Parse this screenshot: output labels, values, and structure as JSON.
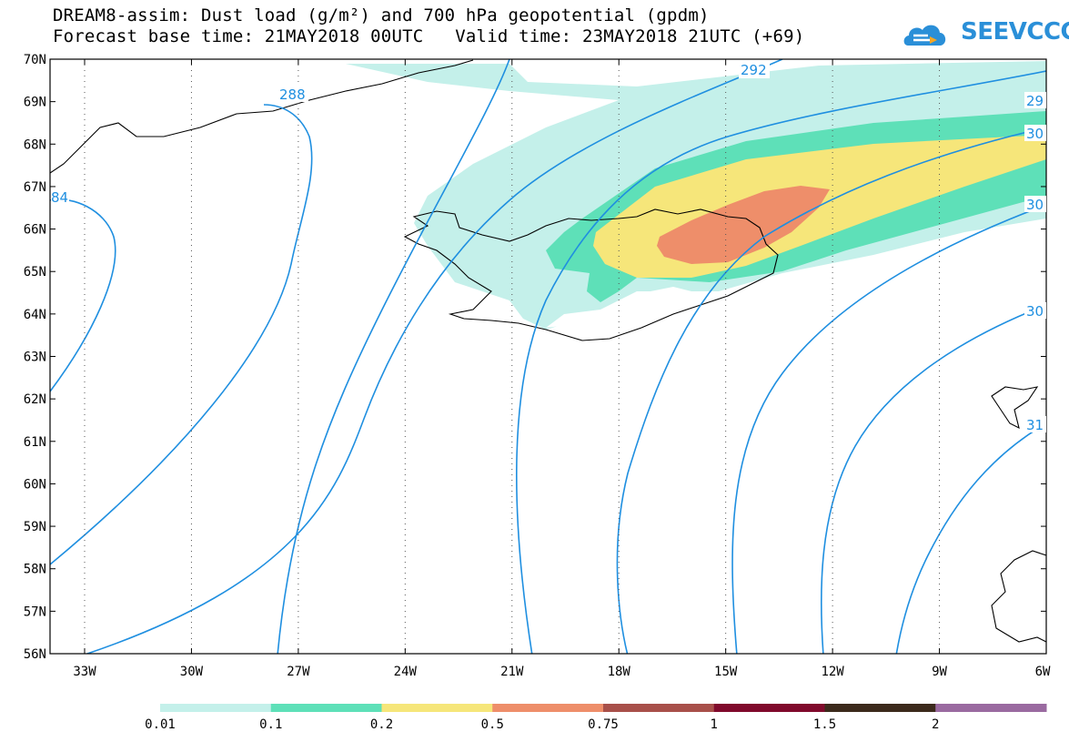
{
  "header": {
    "title_line1": "DREAM8-assim: Dust load (g/m²) and 700 hPa geopotential (gpdm)",
    "title_line2": "Forecast base time: 21MAY2018 00UTC   Valid time: 23MAY2018 21UTC (+69)",
    "logo_text": "SEEVCCC"
  },
  "map": {
    "lat_labels": [
      "70N",
      "69N",
      "68N",
      "67N",
      "66N",
      "65N",
      "64N",
      "63N",
      "62N",
      "61N",
      "60N",
      "59N",
      "58N",
      "57N",
      "56N"
    ],
    "lon_labels": [
      "33W",
      "30W",
      "27W",
      "24W",
      "21W",
      "18W",
      "15W",
      "12W",
      "9W",
      "6W"
    ],
    "contour_labels": [
      "288",
      "292",
      "29",
      "30",
      "30",
      "30",
      "31",
      "84"
    ]
  },
  "colorbar": {
    "colors": [
      "#c4f0ea",
      "#5ee0b8",
      "#f6e67a",
      "#ee8e6a",
      "#a8504a",
      "#800a2c",
      "#3c2a1c",
      "#9a6aa0"
    ],
    "labels": [
      "0.01",
      "0.1",
      "0.2",
      "0.5",
      "0.75",
      "1",
      "1.5",
      "2"
    ]
  }
}
